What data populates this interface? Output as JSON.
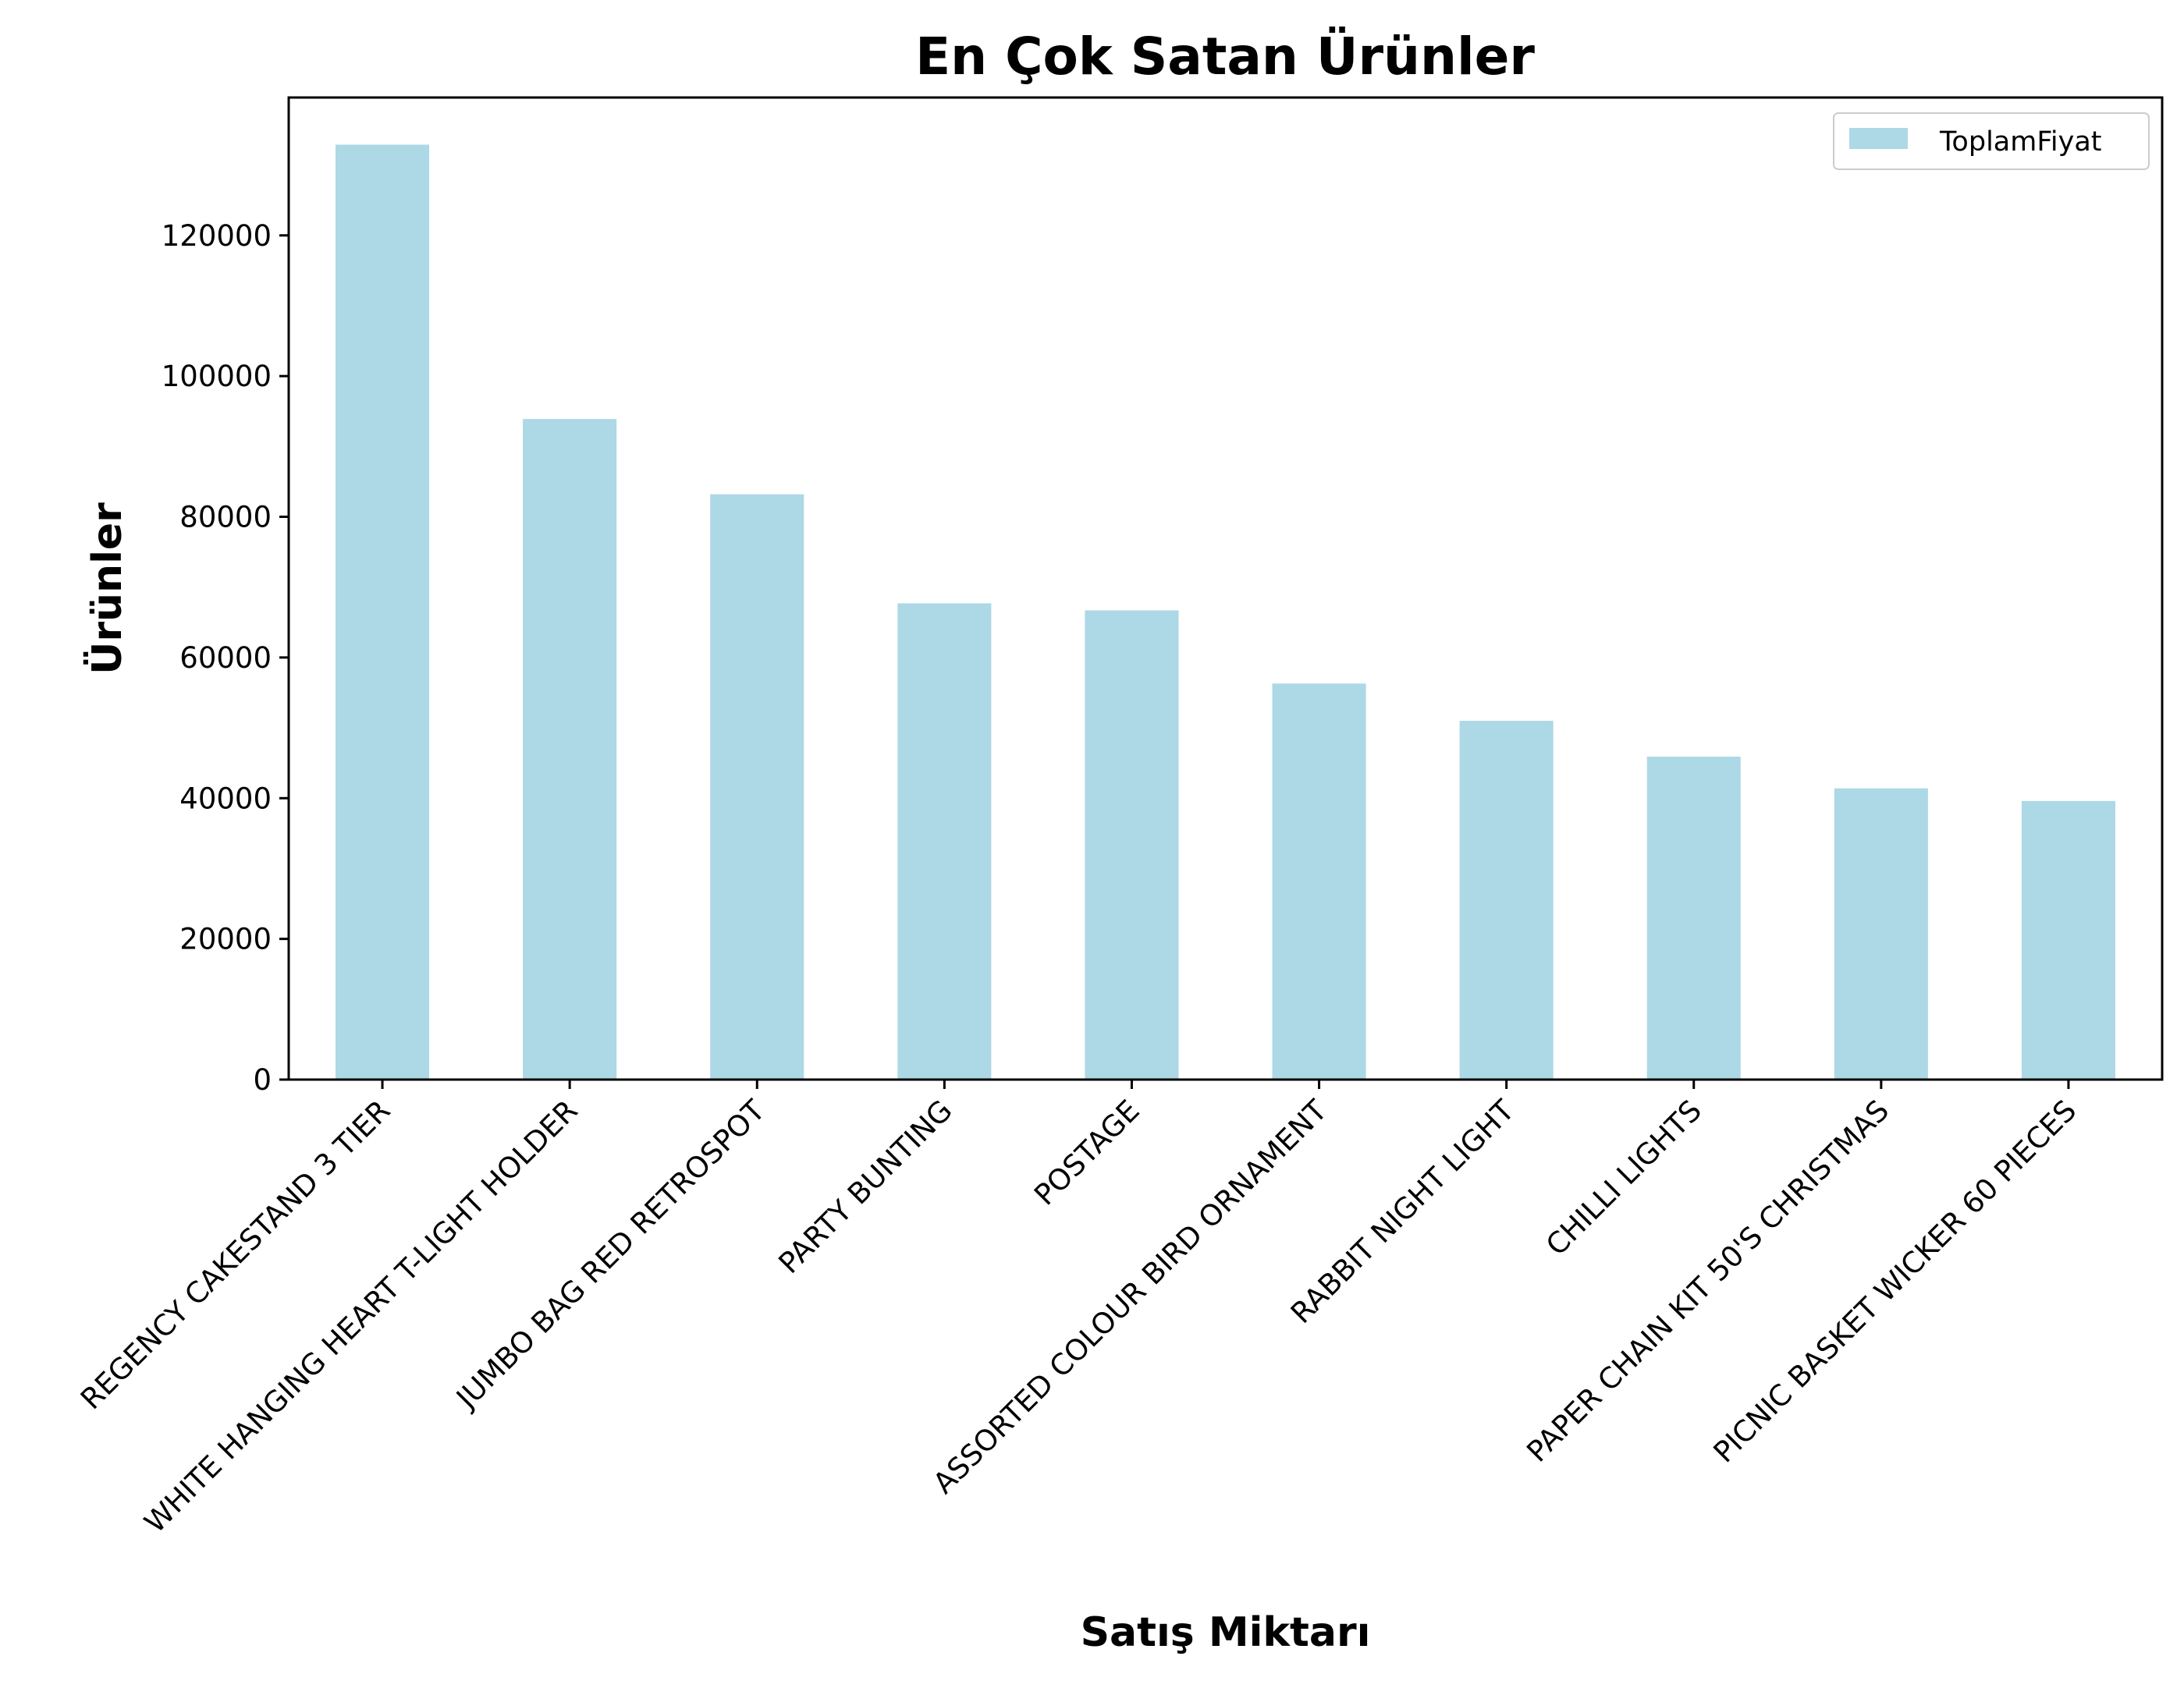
{
  "chart_data": {
    "type": "bar",
    "title": "En Çok Satan Ürünler",
    "xlabel": "Satış Miktarı",
    "ylabel": "Ürünler",
    "categories": [
      "REGENCY CAKESTAND 3 TIER",
      "WHITE HANGING HEART T-LIGHT HOLDER",
      "JUMBO BAG RED RETROSPOT",
      "PARTY BUNTING",
      "POSTAGE",
      "ASSORTED COLOUR BIRD ORNAMENT",
      "RABBIT NIGHT LIGHT",
      "CHILLI LIGHTS",
      "PAPER CHAIN KIT 50'S CHRISTMAS",
      "PICNIC BASKET WICKER 60 PIECES"
    ],
    "series": [
      {
        "name": "ToplamFiyat",
        "values": [
          132900,
          93900,
          83200,
          67700,
          66700,
          56300,
          51000,
          45900,
          41400,
          39600
        ]
      }
    ],
    "ylim": [
      0,
      139600
    ],
    "yticks": [
      0,
      20000,
      40000,
      60000,
      80000,
      100000,
      120000
    ],
    "grid": false,
    "legend_position": "top-right",
    "colors": {
      "bar": "#add8e6",
      "title": "#00008b",
      "axis": "#000000"
    }
  }
}
